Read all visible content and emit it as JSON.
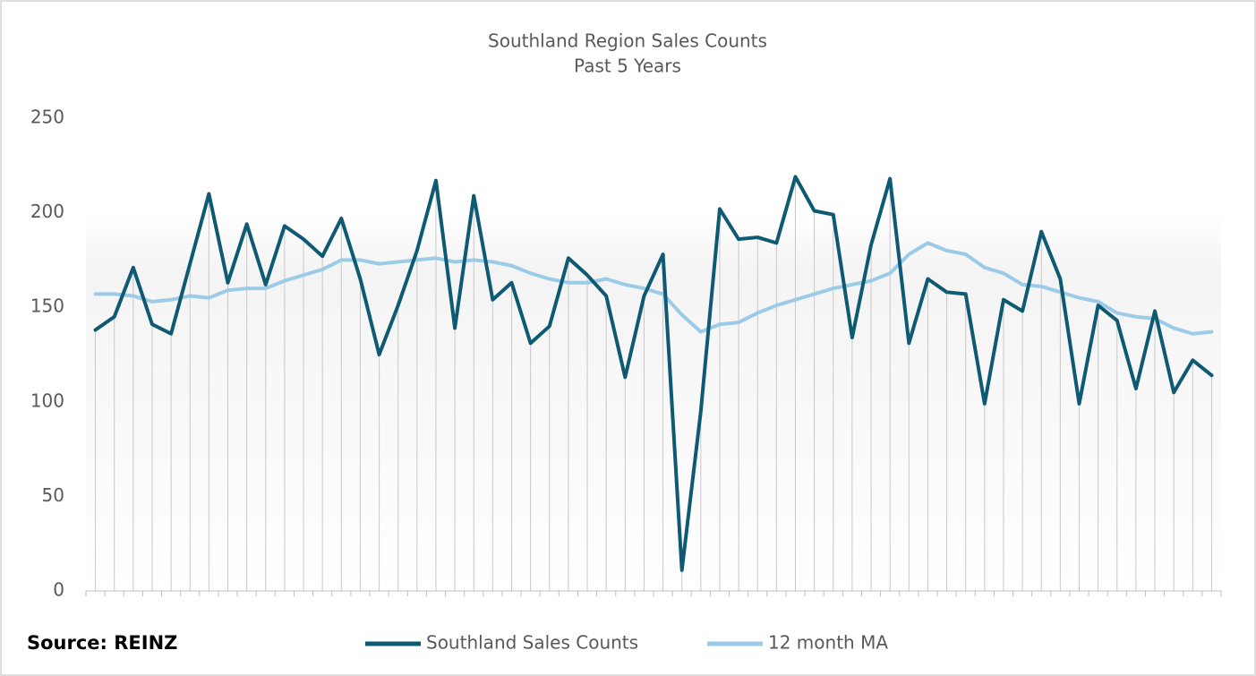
{
  "chart_data": {
    "type": "line",
    "title": "Southland Region Sales Counts",
    "subtitle": "Past 5 Years",
    "source": "Source: REINZ",
    "categories": [
      null,
      null,
      null,
      null,
      null,
      null,
      null,
      null,
      null,
      null,
      null,
      null,
      null,
      null,
      null,
      null,
      null,
      null,
      null,
      null,
      null,
      null,
      null,
      null,
      null,
      null,
      null,
      null,
      null,
      null,
      null,
      null,
      null,
      null,
      null,
      null,
      null,
      null,
      null,
      null,
      null,
      null,
      null,
      null,
      null,
      null,
      null,
      null,
      null,
      null,
      null,
      null,
      null,
      null,
      null,
      null,
      null,
      null,
      null,
      null
    ],
    "series": [
      {
        "name": "Southland Sales Counts",
        "color": "#0e5a73",
        "values": [
          138,
          145,
          171,
          141,
          136,
          173,
          210,
          163,
          194,
          162,
          193,
          186,
          177,
          197,
          165,
          125,
          151,
          180,
          217,
          139,
          209,
          154,
          163,
          131,
          140,
          176,
          167,
          156,
          113,
          156,
          178,
          11,
          95,
          202,
          186,
          187,
          184,
          219,
          201,
          199,
          134,
          183,
          218,
          131,
          165,
          158,
          157,
          99,
          154,
          148,
          190,
          165,
          99,
          151,
          143,
          107,
          148,
          105,
          122,
          114
        ]
      },
      {
        "name": "12 month MA",
        "color": "#9ccbe8",
        "values": [
          157,
          157,
          156,
          153,
          154,
          156,
          155,
          159,
          160,
          160,
          164,
          167,
          170,
          175,
          175,
          173,
          174,
          175,
          176,
          174,
          175,
          174,
          172,
          168,
          165,
          163,
          163,
          165,
          162,
          160,
          157,
          146,
          137,
          141,
          142,
          147,
          151,
          154,
          157,
          160,
          162,
          164,
          168,
          178,
          184,
          180,
          178,
          171,
          168,
          162,
          161,
          158,
          155,
          153,
          147,
          145,
          144,
          139,
          136,
          137
        ]
      }
    ],
    "ylim": [
      0,
      250
    ],
    "yticks": [
      0,
      50,
      100,
      150,
      200,
      250
    ],
    "drop_lines": true
  }
}
